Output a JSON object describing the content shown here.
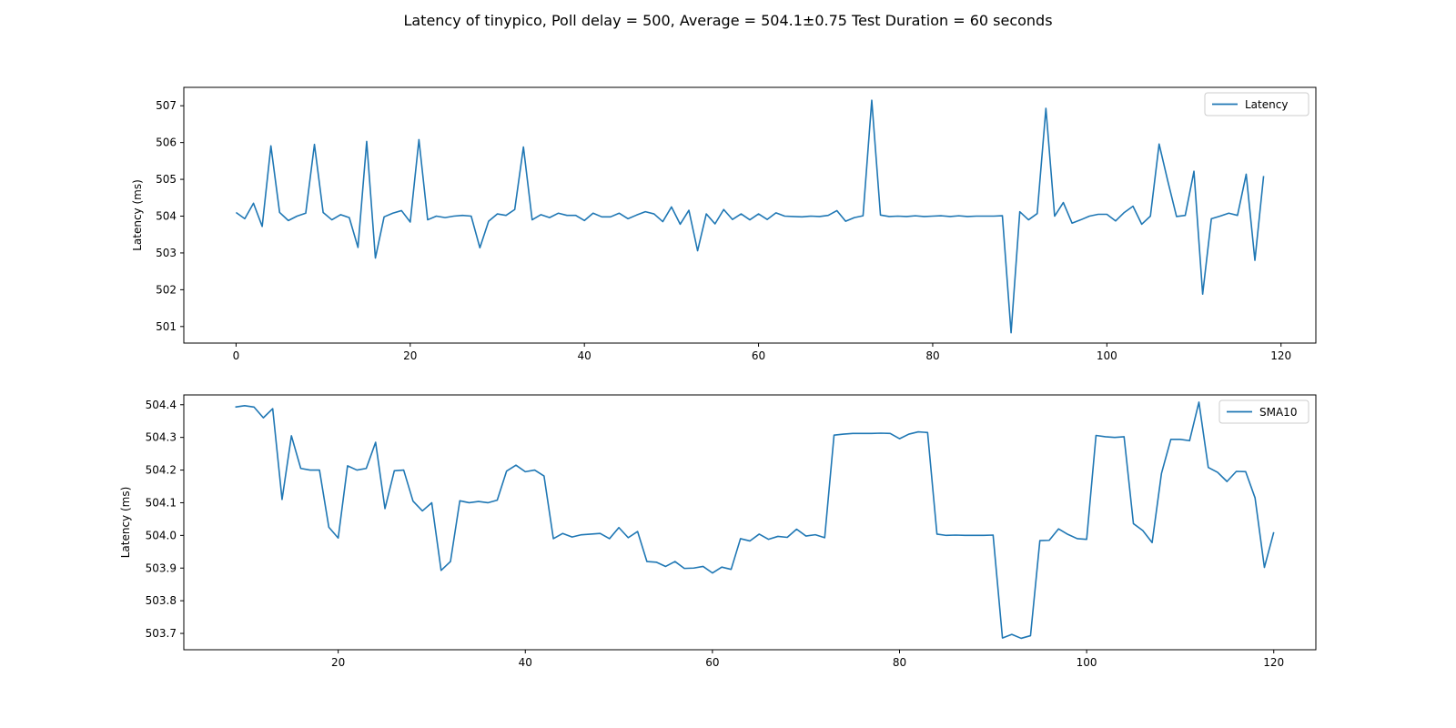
{
  "figure": {
    "suptitle": "Latency of tinypico, Poll delay = 500, Average = 504.1±0.75 Test Duration = 60 seconds"
  },
  "chart_data": [
    {
      "type": "line",
      "title": "",
      "xlabel": "",
      "ylabel": "Latency (ms)",
      "xlim": [
        -6,
        124
      ],
      "ylim": [
        500.55,
        507.5
      ],
      "xticks": [
        0,
        20,
        40,
        60,
        80,
        100,
        120
      ],
      "yticks": [
        501,
        502,
        503,
        504,
        505,
        506,
        507
      ],
      "grid": false,
      "legend_position": "upper right",
      "series": [
        {
          "name": "Latency",
          "color": "#1f77b4",
          "x_start": 0,
          "x_step": 1,
          "values": [
            504.1,
            503.93,
            504.35,
            503.72,
            505.91,
            504.1,
            503.88,
            504.0,
            504.08,
            505.95,
            504.1,
            503.9,
            504.04,
            503.96,
            503.15,
            506.03,
            502.86,
            503.98,
            504.08,
            504.15,
            503.84,
            506.08,
            503.9,
            504.0,
            503.96,
            504.0,
            504.02,
            504.0,
            503.14,
            503.86,
            504.06,
            504.02,
            504.18,
            505.88,
            503.9,
            504.04,
            503.96,
            504.08,
            504.02,
            504.02,
            503.88,
            504.08,
            503.98,
            503.98,
            504.08,
            503.93,
            504.03,
            504.12,
            504.06,
            503.85,
            504.25,
            503.78,
            504.16,
            503.06,
            504.06,
            503.79,
            504.18,
            503.91,
            504.06,
            503.9,
            504.06,
            503.91,
            504.09,
            504.0,
            503.99,
            503.98,
            504.0,
            503.99,
            504.02,
            504.15,
            503.86,
            503.96,
            504.01,
            507.15,
            504.03,
            503.99,
            504.0,
            503.99,
            504.01,
            503.99,
            504.0,
            504.01,
            503.99,
            504.01,
            503.99,
            504.0,
            504.0,
            504.0,
            504.01,
            500.83,
            504.12,
            503.9,
            504.07,
            506.93,
            504.0,
            504.37,
            503.81,
            503.9,
            504.0,
            504.05,
            504.05,
            503.87,
            504.1,
            504.27,
            503.78,
            504.0,
            505.96,
            504.95,
            503.99,
            504.02,
            505.22,
            501.88,
            503.93,
            504.0,
            504.08,
            504.02,
            505.14,
            502.8,
            505.09
          ]
        }
      ]
    },
    {
      "type": "line",
      "title": "",
      "xlabel": "",
      "ylabel": "Latency (ms)",
      "xlim": [
        3.5,
        124.5
      ],
      "ylim": [
        503.65,
        504.43
      ],
      "xticks": [
        20,
        40,
        60,
        80,
        100,
        120
      ],
      "yticks": [
        503.7,
        503.8,
        503.9,
        504.0,
        504.1,
        504.2,
        504.3,
        504.4
      ],
      "grid": false,
      "legend_position": "upper right",
      "series": [
        {
          "name": "SMA10",
          "color": "#1f77b4",
          "x_start": 9,
          "x_step": 1,
          "values": [
            504.393,
            504.397,
            504.393,
            504.36,
            504.388,
            504.11,
            504.305,
            504.205,
            504.2,
            504.2,
            504.025,
            503.992,
            504.213,
            504.2,
            504.205,
            504.285,
            504.082,
            504.198,
            504.2,
            504.105,
            504.075,
            504.1,
            503.893,
            503.92,
            504.106,
            504.1,
            504.104,
            504.1,
            504.108,
            504.197,
            504.215,
            504.195,
            504.2,
            504.182,
            503.99,
            504.006,
            503.995,
            504.002,
            504.004,
            504.006,
            503.99,
            504.024,
            503.993,
            504.012,
            503.92,
            503.918,
            503.905,
            503.92,
            503.899,
            503.9,
            503.905,
            503.885,
            503.903,
            503.896,
            503.99,
            503.983,
            504.004,
            503.988,
            503.997,
            503.994,
            504.019,
            503.998,
            504.002,
            503.993,
            504.307,
            504.31,
            504.312,
            504.312,
            504.312,
            504.313,
            504.312,
            504.296,
            504.31,
            504.317,
            504.315,
            504.004,
            504.0,
            504.001,
            504.0,
            504.0,
            504.0,
            504.001,
            503.686,
            503.697,
            503.685,
            503.693,
            503.984,
            503.985,
            504.02,
            504.003,
            503.99,
            503.988,
            504.306,
            504.302,
            504.3,
            504.302,
            504.036,
            504.015,
            503.978,
            504.19,
            504.294,
            504.294,
            504.29,
            504.408,
            504.208,
            504.193,
            504.165,
            504.196,
            504.195,
            504.115,
            503.902,
            504.01
          ]
        }
      ]
    }
  ]
}
